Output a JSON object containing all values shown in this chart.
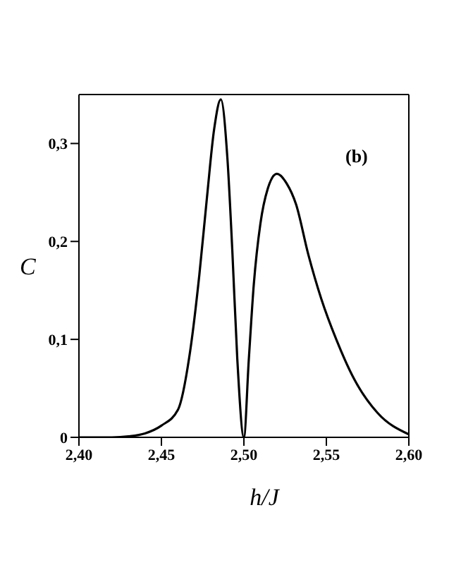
{
  "chart_data": {
    "type": "line",
    "xlabel": "h/J",
    "ylabel": "C",
    "annotations": [
      "(b)"
    ],
    "x": [
      2.4,
      2.42,
      2.43,
      2.44,
      2.45,
      2.46,
      2.4675,
      2.473,
      2.4775,
      2.482,
      2.486,
      2.49,
      2.493,
      2.496,
      2.5,
      2.503,
      2.506,
      2.51,
      2.5145,
      2.52,
      2.526,
      2.5316,
      2.539,
      2.547,
      2.556,
      2.567,
      2.581,
      2.6
    ],
    "series": [
      {
        "color": "#000000",
        "values": [
          0,
          0,
          0.001,
          0.004,
          0.012,
          0.028,
          0.089,
          0.166,
          0.243,
          0.315,
          0.345,
          0.285,
          0.19,
          0.08,
          0,
          0.08,
          0.156,
          0.218,
          0.254,
          0.269,
          0.259,
          0.238,
          0.187,
          0.141,
          0.1,
          0.059,
          0.025,
          0.003
        ]
      }
    ],
    "xlim": [
      2.4,
      2.6
    ],
    "ylim": [
      0,
      0.35
    ],
    "xticks": [
      {
        "value": 2.4,
        "label": "2,40"
      },
      {
        "value": 2.45,
        "label": "2,45"
      },
      {
        "value": 2.5,
        "label": "2,50"
      },
      {
        "value": 2.55,
        "label": "2,55"
      },
      {
        "value": 2.6,
        "label": "2,60"
      }
    ],
    "yticks": [
      {
        "value": 0,
        "label": "0"
      },
      {
        "value": 0.1,
        "label": "0,1"
      },
      {
        "value": 0.2,
        "label": "0,2"
      },
      {
        "value": 0.3,
        "label": "0,3"
      }
    ],
    "grid": false,
    "legend": false,
    "marker": "none",
    "line_style": "solid"
  }
}
